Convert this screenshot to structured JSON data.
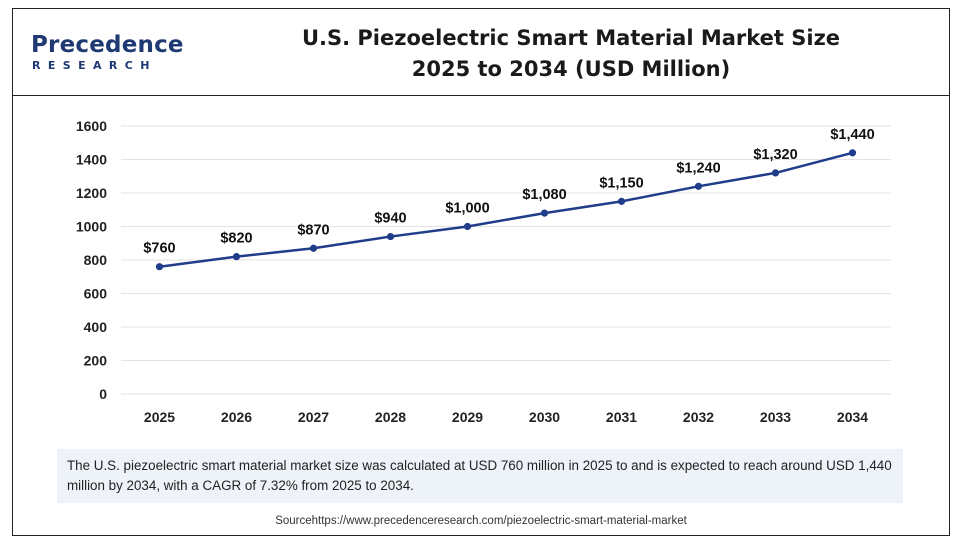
{
  "header": {
    "logo_main": "Precedence",
    "logo_sub": "RESEARCH",
    "title_line1": "U.S. Piezoelectric Smart Material Market Size",
    "title_line2": "2025 to 2034 (USD Million)"
  },
  "chart_data": {
    "type": "line",
    "categories": [
      "2025",
      "2026",
      "2027",
      "2028",
      "2029",
      "2030",
      "2031",
      "2032",
      "2033",
      "2034"
    ],
    "values": [
      760,
      820,
      870,
      940,
      1000,
      1080,
      1150,
      1240,
      1320,
      1440
    ],
    "data_labels": [
      "$760",
      "$820",
      "$870",
      "$940",
      "$1,000",
      "$1,080",
      "$1,150",
      "$1,240",
      "$1,320",
      "$1,440"
    ],
    "yticks": [
      "0",
      "200",
      "400",
      "600",
      "800",
      "1000",
      "1200",
      "1400",
      "1600"
    ],
    "ylim": [
      0,
      1600
    ],
    "grid": true,
    "legend": "none",
    "line_color": "#1f3d8a"
  },
  "caption": "The U.S. piezoelectric smart material market  size was calculated at USD 760 million in 2025 to and is expected to reach around USD 1,440 million by 2034, with a CAGR of 7.32% from 2025 to 2034.",
  "source": "Sourcehttps://www.precedenceresearch.com/piezoelectric-smart-material-market"
}
